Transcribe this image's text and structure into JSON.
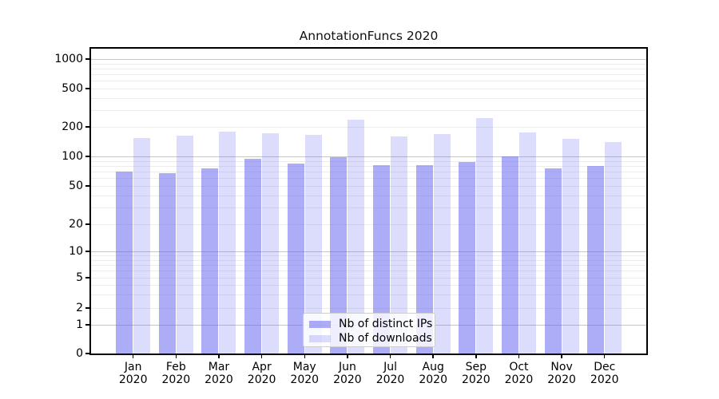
{
  "title": "AnnotationFuncs 2020",
  "legend": {
    "items": [
      {
        "label": "Nb of distinct IPs",
        "key": "ips"
      },
      {
        "label": "Nb of downloads",
        "key": "downloads"
      }
    ]
  },
  "colors": {
    "ips_fill": "rgba(90,90,240,0.50)",
    "downloads_fill": "rgba(90,90,240,0.21)",
    "major_grid": "#c6c6c6",
    "minor_grid": "#ededed",
    "axis": "#000000"
  },
  "x_axis": {
    "year_line": "2020"
  },
  "chart_data": {
    "type": "bar",
    "title": "AnnotationFuncs 2020",
    "categories": [
      "Jan 2020",
      "Feb 2020",
      "Mar 2020",
      "Apr 2020",
      "May 2020",
      "Jun 2020",
      "Jul 2020",
      "Aug 2020",
      "Sep 2020",
      "Oct 2020",
      "Nov 2020",
      "Dec 2020"
    ],
    "series": [
      {
        "name": "Nb of distinct IPs",
        "values": [
          70,
          68,
          75,
          94,
          85,
          98,
          82,
          81,
          87,
          100,
          75,
          80
        ]
      },
      {
        "name": "Nb of downloads",
        "values": [
          153,
          163,
          180,
          171,
          166,
          237,
          161,
          169,
          245,
          176,
          151,
          140
        ]
      }
    ],
    "xlabel": "",
    "ylabel": "",
    "yscale": "symlog",
    "y_ticks": [
      0,
      1,
      2,
      5,
      10,
      20,
      50,
      100,
      200,
      500,
      1000
    ],
    "ylim": [
      0,
      1280
    ],
    "grid": true,
    "legend_position": "lower center inside"
  }
}
